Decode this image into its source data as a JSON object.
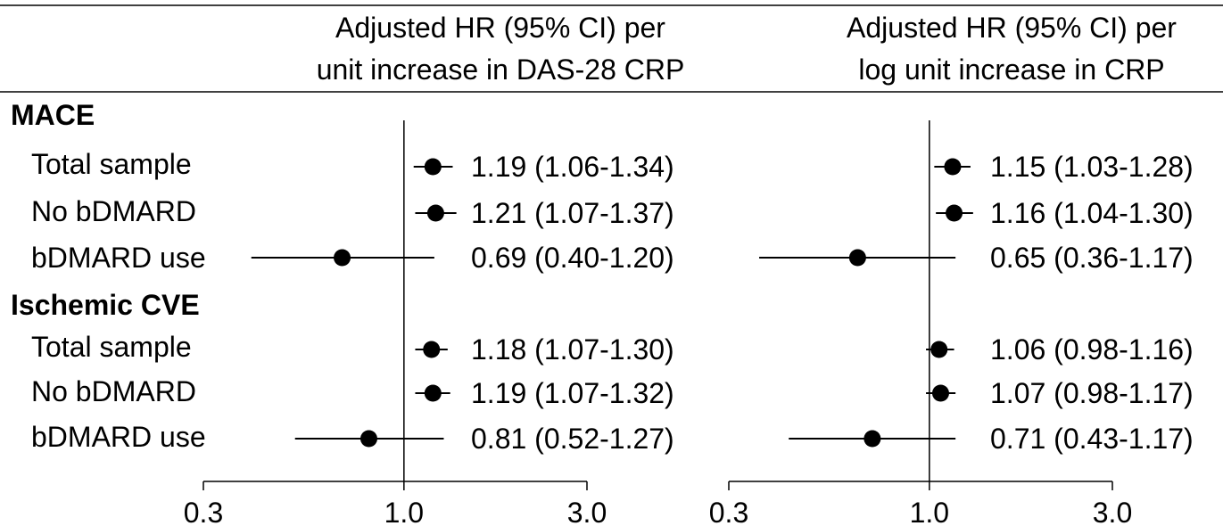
{
  "headers": {
    "left": [
      "Adjusted HR (95% CI) per",
      "unit increase in DAS-28 CRP"
    ],
    "right": [
      "Adjusted HR (95% CI) per",
      "log unit increase in CRP"
    ]
  },
  "groups": [
    {
      "title": "MACE",
      "rows": [
        "Total sample",
        "No bDMARD",
        "bDMARD use"
      ]
    },
    {
      "title": "Ischemic CVE",
      "rows": [
        "Total sample",
        "No bDMARD",
        "bDMARD use"
      ]
    }
  ],
  "colors": {
    "ink": "#000000",
    "background": "#ffffff"
  },
  "chart_data": [
    {
      "type": "forest",
      "scale": "log",
      "xlim": [
        0.3,
        3.0
      ],
      "reference_line": 1.0,
      "ticks": [
        0.3,
        1.0,
        3.0
      ],
      "tick_labels": [
        "0.3",
        "1.0",
        "3.0"
      ],
      "rows": [
        {
          "group": "MACE",
          "label": "Total sample",
          "hr": 1.19,
          "lo": 1.06,
          "hi": 1.34,
          "text": "1.19 (1.06-1.34)"
        },
        {
          "group": "MACE",
          "label": "No bDMARD",
          "hr": 1.21,
          "lo": 1.07,
          "hi": 1.37,
          "text": "1.21 (1.07-1.37)"
        },
        {
          "group": "MACE",
          "label": "bDMARD use",
          "hr": 0.69,
          "lo": 0.4,
          "hi": 1.2,
          "text": "0.69 (0.40-1.20)"
        },
        {
          "group": "Ischemic CVE",
          "label": "Total sample",
          "hr": 1.18,
          "lo": 1.07,
          "hi": 1.3,
          "text": "1.18 (1.07-1.30)"
        },
        {
          "group": "Ischemic CVE",
          "label": "No bDMARD",
          "hr": 1.19,
          "lo": 1.07,
          "hi": 1.32,
          "text": "1.19 (1.07-1.32)"
        },
        {
          "group": "Ischemic CVE",
          "label": "bDMARD use",
          "hr": 0.81,
          "lo": 0.52,
          "hi": 1.27,
          "text": "0.81 (0.52-1.27)"
        }
      ]
    },
    {
      "type": "forest",
      "scale": "log",
      "xlim": [
        0.3,
        3.0
      ],
      "reference_line": 1.0,
      "ticks": [
        0.3,
        1.0,
        3.0
      ],
      "tick_labels": [
        "0.3",
        "1.0",
        "3.0"
      ],
      "rows": [
        {
          "group": "MACE",
          "label": "Total sample",
          "hr": 1.15,
          "lo": 1.03,
          "hi": 1.28,
          "text": "1.15 (1.03-1.28)"
        },
        {
          "group": "MACE",
          "label": "No bDMARD",
          "hr": 1.16,
          "lo": 1.04,
          "hi": 1.3,
          "text": "1.16 (1.04-1.30)"
        },
        {
          "group": "MACE",
          "label": "bDMARD use",
          "hr": 0.65,
          "lo": 0.36,
          "hi": 1.17,
          "text": "0.65 (0.36-1.17)"
        },
        {
          "group": "Ischemic CVE",
          "label": "Total sample",
          "hr": 1.06,
          "lo": 0.98,
          "hi": 1.16,
          "text": "1.06 (0.98-1.16)"
        },
        {
          "group": "Ischemic CVE",
          "label": "No bDMARD",
          "hr": 1.07,
          "lo": 0.98,
          "hi": 1.17,
          "text": "1.07 (0.98-1.17)"
        },
        {
          "group": "Ischemic CVE",
          "label": "bDMARD use",
          "hr": 0.71,
          "lo": 0.43,
          "hi": 1.17,
          "text": "0.71 (0.43-1.17)"
        }
      ]
    }
  ]
}
